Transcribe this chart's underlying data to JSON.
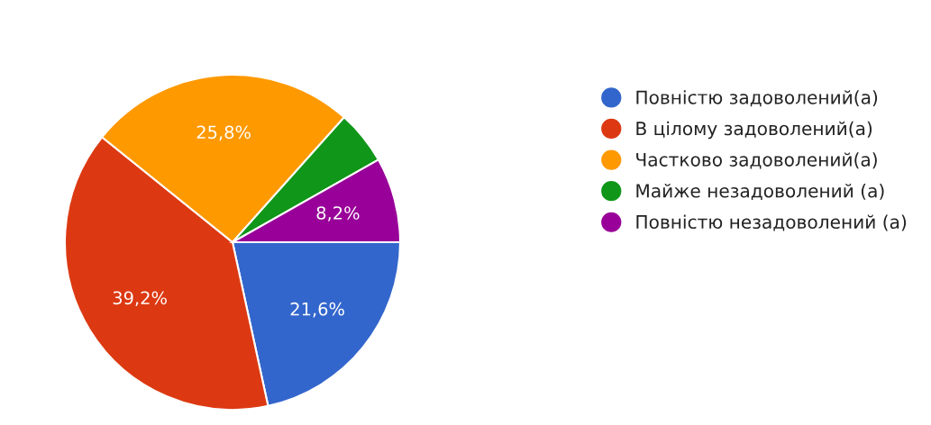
{
  "chart_data": {
    "type": "pie",
    "categories": [
      "Повністю задоволений(а)",
      "В цілому задоволений(а)",
      "Частково задоволений(а)",
      "Майже незадоволений (а)",
      "Повністю незадоволений (а)"
    ],
    "values": [
      21.6,
      39.2,
      25.8,
      5.2,
      8.2
    ],
    "value_labels": [
      "21,6%",
      "39,2%",
      "25,8%",
      null,
      "8,2%"
    ],
    "colors": [
      "#3366cc",
      "#dc3912",
      "#ff9900",
      "#109618",
      "#990099"
    ],
    "legend": "right"
  }
}
